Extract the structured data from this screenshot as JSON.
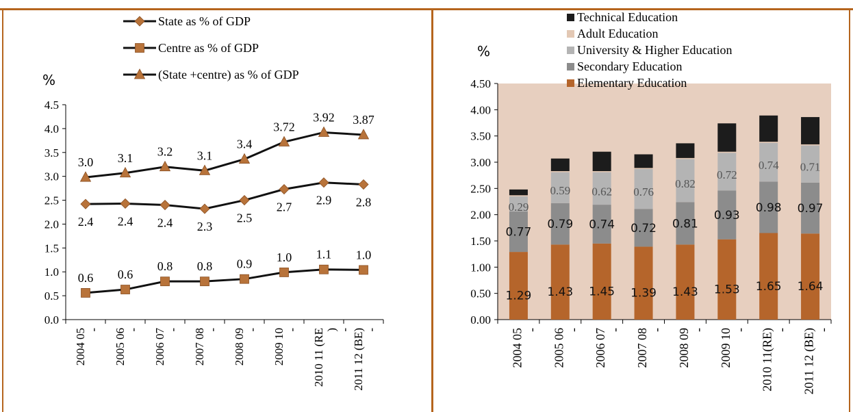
{
  "colors": {
    "frame": "#b5651d",
    "line": "#111111",
    "marker": "#b8733a",
    "plot_bg": "#e7cfbf",
    "elementary": "#b5652b",
    "secondary": "#8c8c8c",
    "university": "#b4b4b4",
    "adult": "#e3c8b4",
    "technical": "#1c1c1c"
  },
  "chart_data": [
    {
      "type": "line",
      "title": "",
      "ylabel": "%",
      "xlabel": "",
      "ylim": [
        0,
        4.5
      ],
      "yticks": [
        "0.0",
        "0.5",
        "1.0",
        "1.5",
        "2.0",
        "2.5",
        "3.0",
        "3.5",
        "4.0",
        "4.5"
      ],
      "ytick_values": [
        0,
        0.5,
        1.0,
        1.5,
        2.0,
        2.5,
        3.0,
        3.5,
        4.0,
        4.5
      ],
      "categories": [
        "2004 05 -",
        "2005 06 -",
        "2006 07 -",
        "2007 08 -",
        "2008 09 -",
        "2009 10 -",
        "2010 11 (RE ) -",
        "2011 12 (BE) -"
      ],
      "category_lines": [
        [
          "2004 05",
          "-"
        ],
        [
          "2005 06",
          "-"
        ],
        [
          "2006 07",
          "-"
        ],
        [
          "2007 08",
          "-"
        ],
        [
          "2008 09",
          "-"
        ],
        [
          "2009 10",
          "-"
        ],
        [
          "2010 11 (RE",
          ")",
          "-"
        ],
        [
          "2011 12 (BE)",
          "-"
        ]
      ],
      "legend_position": "top",
      "series": [
        {
          "name": "State as % of GDP",
          "marker": "diamond",
          "values": [
            2.42,
            2.43,
            2.4,
            2.32,
            2.5,
            2.73,
            2.87,
            2.83
          ],
          "labels": [
            "2.4",
            "2.4",
            "2.4",
            "2.3",
            "2.5",
            "2.7",
            "2.9",
            "2.8"
          ],
          "label_pos": "below"
        },
        {
          "name": "Centre as % of GDP",
          "marker": "square",
          "values": [
            0.56,
            0.63,
            0.8,
            0.8,
            0.85,
            0.99,
            1.05,
            1.04
          ],
          "labels": [
            "0.6",
            "0.6",
            "0.8",
            "0.8",
            "0.9",
            "1.0",
            "1.1",
            "1.0"
          ],
          "label_pos": "above"
        },
        {
          "name": "(State +centre) as % of GDP",
          "marker": "triangle",
          "values": [
            2.98,
            3.07,
            3.2,
            3.12,
            3.36,
            3.72,
            3.92,
            3.87
          ],
          "labels": [
            "3.0",
            "3.1",
            "3.2",
            "3.1",
            "3.4",
            "3.72",
            "3.92",
            "3.87"
          ],
          "label_pos": "above"
        }
      ]
    },
    {
      "type": "bar",
      "stacked": true,
      "title": "",
      "ylabel": "%",
      "xlabel": "",
      "ylim": [
        0,
        4.5
      ],
      "yticks": [
        "0.00",
        "0.50",
        "1.00",
        "1.50",
        "2.00",
        "2.50",
        "3.00",
        "3.50",
        "4.00",
        "4.50"
      ],
      "ytick_values": [
        0,
        0.5,
        1.0,
        1.5,
        2.0,
        2.5,
        3.0,
        3.5,
        4.0,
        4.5
      ],
      "categories": [
        "2004 05 -",
        "2005 06 -",
        "2006 07 -",
        "2007 08 -",
        "2008 09 -",
        "2009 10 -",
        "2010 11(RE) -",
        "2011 12 (BE) -"
      ],
      "category_lines": [
        [
          "2004 05",
          "-"
        ],
        [
          "2005 06",
          "-"
        ],
        [
          "2006 07",
          "-"
        ],
        [
          "2007 08",
          "-"
        ],
        [
          "2008 09",
          "-"
        ],
        [
          "2009 10",
          "-"
        ],
        [
          "2010 11(RE)",
          "-"
        ],
        [
          "2011 12 (BE)",
          "-"
        ]
      ],
      "legend_position": "top",
      "legend_order": [
        "Technical Education",
        "Adult Education",
        "University & Higher Education",
        "Secondary Education",
        "Elementary Education"
      ],
      "series": [
        {
          "name": "Elementary Education",
          "values": [
            1.29,
            1.43,
            1.45,
            1.39,
            1.43,
            1.53,
            1.65,
            1.64
          ],
          "labels": [
            "1.29",
            "1.43",
            "1.45",
            "1.39",
            "1.43",
            "1.53",
            "1.65",
            "1.64"
          ]
        },
        {
          "name": "Secondary Education",
          "values": [
            0.77,
            0.79,
            0.74,
            0.72,
            0.81,
            0.93,
            0.98,
            0.97
          ],
          "labels": [
            "0.77",
            "0.79",
            "0.74",
            "0.72",
            "0.81",
            "0.93",
            "0.98",
            "0.97"
          ]
        },
        {
          "name": "University & Higher Education",
          "values": [
            0.29,
            0.59,
            0.62,
            0.76,
            0.82,
            0.72,
            0.74,
            0.71
          ],
          "labels": [
            "0.29",
            "0.59",
            "0.62",
            "0.76",
            "0.82",
            "0.72",
            "0.74",
            "0.71"
          ]
        },
        {
          "name": "Adult Education",
          "values": [
            0.02,
            0.02,
            0.02,
            0.02,
            0.02,
            0.02,
            0.02,
            0.02
          ],
          "labels": []
        },
        {
          "name": "Technical Education",
          "values": [
            0.11,
            0.24,
            0.37,
            0.26,
            0.28,
            0.54,
            0.5,
            0.52
          ],
          "labels": []
        }
      ]
    }
  ]
}
